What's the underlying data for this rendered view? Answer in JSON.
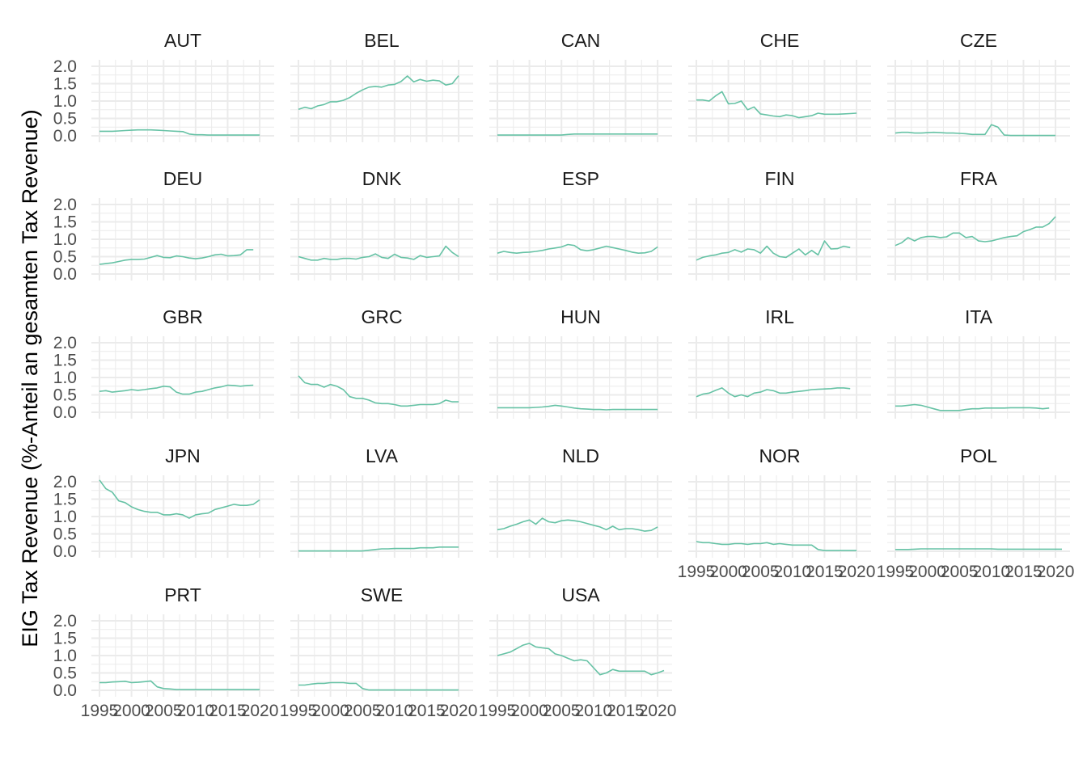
{
  "chart_data": {
    "type": "line",
    "ylabel": "EIG Tax Revenue (%-Anteil an gesamten Tax Revenue)",
    "xlabel": "",
    "xlim": [
      1995,
      2021
    ],
    "ylim": [
      0,
      2.0
    ],
    "x_ticks": [
      1995,
      2000,
      2005,
      2010,
      2015,
      2020
    ],
    "x_tick_labels": [
      "1995",
      "2000",
      "2005",
      "2010",
      "2015",
      "2020"
    ],
    "y_ticks": [
      0,
      0.5,
      1.0,
      1.5,
      2.0
    ],
    "y_tick_labels": [
      "0.0",
      "0.5",
      "1.0",
      "1.5",
      "2.0"
    ],
    "grid": true,
    "line_color": "#66c2a5",
    "panel_grid_color": "#ebebeb",
    "years": [
      1995,
      1996,
      1997,
      1998,
      1999,
      2000,
      2001,
      2002,
      2003,
      2004,
      2005,
      2006,
      2007,
      2008,
      2009,
      2010,
      2011,
      2012,
      2013,
      2014,
      2015,
      2016,
      2017,
      2018,
      2019,
      2020,
      2021
    ],
    "series": [
      {
        "name": "AUT",
        "values": [
          0.13,
          0.13,
          0.13,
          0.14,
          0.15,
          0.16,
          0.17,
          0.17,
          0.17,
          0.16,
          0.15,
          0.14,
          0.13,
          0.12,
          0.05,
          0.03,
          0.03,
          0.02,
          0.02,
          0.02,
          0.02,
          0.02,
          0.02,
          0.02,
          0.02,
          0.02,
          null
        ]
      },
      {
        "name": "BEL",
        "values": [
          0.76,
          0.82,
          0.78,
          0.86,
          0.9,
          0.98,
          0.98,
          1.02,
          1.1,
          1.22,
          1.32,
          1.4,
          1.42,
          1.4,
          1.46,
          1.48,
          1.56,
          1.72,
          1.55,
          1.62,
          1.57,
          1.6,
          1.58,
          1.46,
          1.5,
          1.73,
          null
        ]
      },
      {
        "name": "CAN",
        "values": [
          0.02,
          0.02,
          0.02,
          0.02,
          0.02,
          0.02,
          0.02,
          0.02,
          0.02,
          0.02,
          0.02,
          0.04,
          0.05,
          0.05,
          0.05,
          0.05,
          0.05,
          0.05,
          0.05,
          0.05,
          0.05,
          0.05,
          0.05,
          0.05,
          0.05,
          0.05,
          null
        ]
      },
      {
        "name": "CHE",
        "values": [
          1.03,
          1.03,
          1.0,
          1.15,
          1.27,
          0.92,
          0.93,
          1.0,
          0.75,
          0.83,
          0.63,
          0.6,
          0.57,
          0.55,
          0.6,
          0.58,
          0.52,
          0.55,
          0.58,
          0.65,
          0.62,
          0.62,
          0.62,
          0.63,
          0.64,
          0.65,
          null
        ]
      },
      {
        "name": "CZE",
        "values": [
          0.08,
          0.1,
          0.1,
          0.08,
          0.08,
          0.09,
          0.1,
          0.09,
          0.08,
          0.08,
          0.07,
          0.06,
          0.04,
          0.04,
          0.04,
          0.32,
          0.25,
          0.02,
          0.01,
          0.01,
          0.01,
          0.01,
          0.01,
          0.01,
          0.01,
          0.01,
          null
        ]
      },
      {
        "name": "DEU",
        "values": [
          0.28,
          0.3,
          0.32,
          0.36,
          0.4,
          0.42,
          0.42,
          0.43,
          0.48,
          0.53,
          0.48,
          0.47,
          0.52,
          0.5,
          0.46,
          0.44,
          0.46,
          0.5,
          0.55,
          0.57,
          0.52,
          0.53,
          0.55,
          0.7,
          0.7,
          null,
          null
        ]
      },
      {
        "name": "DNK",
        "values": [
          0.5,
          0.45,
          0.4,
          0.4,
          0.45,
          0.42,
          0.42,
          0.45,
          0.45,
          0.43,
          0.48,
          0.5,
          0.58,
          0.48,
          0.45,
          0.57,
          0.48,
          0.46,
          0.42,
          0.53,
          0.48,
          0.5,
          0.52,
          0.8,
          0.62,
          0.5,
          null
        ]
      },
      {
        "name": "ESP",
        "values": [
          0.6,
          0.65,
          0.62,
          0.6,
          0.62,
          0.63,
          0.65,
          0.68,
          0.72,
          0.75,
          0.78,
          0.85,
          0.82,
          0.7,
          0.67,
          0.7,
          0.75,
          0.8,
          0.76,
          0.72,
          0.68,
          0.63,
          0.6,
          0.61,
          0.65,
          0.78,
          null
        ]
      },
      {
        "name": "FIN",
        "values": [
          0.4,
          0.48,
          0.52,
          0.55,
          0.6,
          0.62,
          0.7,
          0.63,
          0.72,
          0.7,
          0.6,
          0.8,
          0.6,
          0.5,
          0.48,
          0.6,
          0.72,
          0.55,
          0.68,
          0.55,
          0.95,
          0.72,
          0.73,
          0.8,
          0.76,
          null,
          null
        ]
      },
      {
        "name": "FRA",
        "values": [
          0.82,
          0.9,
          1.05,
          0.95,
          1.05,
          1.08,
          1.08,
          1.05,
          1.07,
          1.18,
          1.18,
          1.05,
          1.08,
          0.95,
          0.93,
          0.95,
          1.0,
          1.05,
          1.08,
          1.1,
          1.22,
          1.28,
          1.35,
          1.35,
          1.45,
          1.65,
          null
        ]
      },
      {
        "name": "GBR",
        "values": [
          0.6,
          0.62,
          0.58,
          0.6,
          0.62,
          0.65,
          0.63,
          0.65,
          0.68,
          0.7,
          0.75,
          0.73,
          0.58,
          0.52,
          0.52,
          0.58,
          0.6,
          0.65,
          0.7,
          0.73,
          0.78,
          0.77,
          0.75,
          0.77,
          0.78,
          null,
          null
        ]
      },
      {
        "name": "GRC",
        "values": [
          1.05,
          0.85,
          0.8,
          0.8,
          0.72,
          0.8,
          0.75,
          0.65,
          0.45,
          0.4,
          0.4,
          0.35,
          0.27,
          0.25,
          0.25,
          0.22,
          0.18,
          0.18,
          0.2,
          0.22,
          0.22,
          0.22,
          0.25,
          0.35,
          0.3,
          0.3,
          null
        ]
      },
      {
        "name": "HUN",
        "values": [
          0.13,
          0.13,
          0.13,
          0.13,
          0.13,
          0.13,
          0.14,
          0.15,
          0.17,
          0.2,
          0.18,
          0.15,
          0.12,
          0.1,
          0.09,
          0.08,
          0.08,
          0.07,
          0.08,
          0.08,
          0.08,
          0.08,
          0.08,
          0.08,
          0.08,
          0.08,
          null
        ]
      },
      {
        "name": "IRL",
        "values": [
          0.45,
          0.52,
          0.55,
          0.63,
          0.7,
          0.55,
          0.45,
          0.5,
          0.45,
          0.55,
          0.58,
          0.65,
          0.62,
          0.55,
          0.55,
          0.58,
          0.6,
          0.62,
          0.65,
          0.66,
          0.67,
          0.68,
          0.7,
          0.7,
          0.68,
          null,
          null
        ]
      },
      {
        "name": "ITA",
        "values": [
          0.18,
          0.18,
          0.2,
          0.22,
          0.2,
          0.15,
          0.1,
          0.05,
          0.05,
          0.05,
          0.05,
          0.08,
          0.1,
          0.1,
          0.12,
          0.12,
          0.12,
          0.12,
          0.13,
          0.13,
          0.13,
          0.13,
          0.12,
          0.1,
          0.12,
          null,
          null
        ]
      },
      {
        "name": "JPN",
        "values": [
          2.05,
          1.8,
          1.7,
          1.45,
          1.4,
          1.28,
          1.2,
          1.15,
          1.12,
          1.12,
          1.05,
          1.05,
          1.08,
          1.05,
          0.95,
          1.05,
          1.08,
          1.1,
          1.2,
          1.25,
          1.3,
          1.35,
          1.32,
          1.32,
          1.35,
          1.48,
          null
        ]
      },
      {
        "name": "LVA",
        "values": [
          0.01,
          0.01,
          0.01,
          0.01,
          0.01,
          0.01,
          0.01,
          0.01,
          0.01,
          0.01,
          0.01,
          0.03,
          0.05,
          0.07,
          0.07,
          0.08,
          0.08,
          0.08,
          0.08,
          0.1,
          0.1,
          0.1,
          0.12,
          0.12,
          0.12,
          0.12,
          null
        ]
      },
      {
        "name": "NLD",
        "values": [
          0.62,
          0.65,
          0.72,
          0.78,
          0.85,
          0.9,
          0.78,
          0.95,
          0.85,
          0.82,
          0.88,
          0.9,
          0.88,
          0.85,
          0.8,
          0.75,
          0.7,
          0.62,
          0.72,
          0.62,
          0.65,
          0.65,
          0.62,
          0.58,
          0.6,
          0.7,
          null
        ]
      },
      {
        "name": "NOR",
        "values": [
          0.28,
          0.25,
          0.25,
          0.22,
          0.2,
          0.2,
          0.22,
          0.22,
          0.2,
          0.22,
          0.22,
          0.25,
          0.2,
          0.22,
          0.2,
          0.18,
          0.18,
          0.18,
          0.18,
          0.05,
          0.02,
          0.02,
          0.02,
          0.02,
          0.02,
          0.02,
          null
        ]
      },
      {
        "name": "POL",
        "values": [
          0.05,
          0.05,
          0.05,
          0.06,
          0.07,
          0.07,
          0.07,
          0.07,
          0.07,
          0.07,
          0.07,
          0.07,
          0.07,
          0.07,
          0.07,
          0.07,
          0.06,
          0.06,
          0.06,
          0.06,
          0.06,
          0.06,
          0.06,
          0.06,
          0.06,
          0.06,
          0.06
        ]
      },
      {
        "name": "PRT",
        "values": [
          0.22,
          0.22,
          0.24,
          0.25,
          0.26,
          0.22,
          0.23,
          0.25,
          0.27,
          0.1,
          0.05,
          0.04,
          0.02,
          0.02,
          0.02,
          0.02,
          0.02,
          0.02,
          0.02,
          0.02,
          0.02,
          0.02,
          0.02,
          0.02,
          0.02,
          0.02,
          null
        ]
      },
      {
        "name": "SWE",
        "values": [
          0.15,
          0.15,
          0.18,
          0.2,
          0.2,
          0.22,
          0.22,
          0.22,
          0.2,
          0.2,
          0.05,
          0.01,
          0.01,
          0.01,
          0.01,
          0.01,
          0.01,
          0.01,
          0.01,
          0.01,
          0.01,
          0.01,
          0.01,
          0.01,
          0.01,
          0.01,
          null
        ]
      },
      {
        "name": "USA",
        "values": [
          1.0,
          1.05,
          1.1,
          1.2,
          1.3,
          1.35,
          1.25,
          1.22,
          1.2,
          1.05,
          1.0,
          0.92,
          0.85,
          0.88,
          0.85,
          0.65,
          0.45,
          0.5,
          0.6,
          0.55,
          0.55,
          0.55,
          0.55,
          0.55,
          0.45,
          0.5,
          0.57
        ]
      }
    ]
  }
}
